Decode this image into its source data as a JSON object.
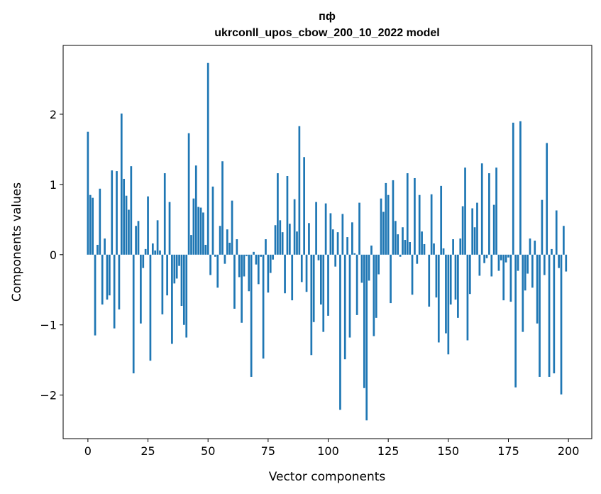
{
  "chart_data": {
    "type": "bar",
    "title_line1": "пф",
    "title_line2": "ukrconll_upos_cbow_200_10_2022 model",
    "xlabel": "Vector components",
    "ylabel": "Components values",
    "xlim": [
      -10.3,
      209.7
    ],
    "ylim": [
      -2.62,
      2.98
    ],
    "xticks": [
      0,
      25,
      50,
      75,
      100,
      125,
      150,
      175,
      200
    ],
    "xtick_labels": [
      "0",
      "25",
      "50",
      "75",
      "100",
      "125",
      "150",
      "175",
      "200"
    ],
    "yticks": [
      -2,
      -1,
      0,
      1,
      2
    ],
    "ytick_labels": [
      "−2",
      "−1",
      "0",
      "1",
      "2"
    ],
    "grid": false,
    "bar_color": "#1f77b4",
    "values": [
      1.75,
      0.85,
      0.81,
      -1.15,
      0.14,
      0.94,
      -0.71,
      0.23,
      -0.64,
      -0.58,
      1.2,
      -1.05,
      1.19,
      -0.78,
      2.01,
      1.08,
      0.84,
      0.64,
      1.26,
      -1.69,
      0.41,
      0.48,
      -0.98,
      -0.19,
      0.08,
      0.83,
      -1.51,
      0.16,
      0.06,
      0.49,
      0.06,
      -0.85,
      1.16,
      -0.58,
      0.75,
      -1.27,
      -0.41,
      -0.34,
      -0.16,
      -0.73,
      -1.0,
      -1.18,
      1.73,
      0.28,
      0.8,
      1.27,
      0.68,
      0.67,
      0.6,
      0.14,
      2.73,
      -0.29,
      0.97,
      -0.03,
      -0.47,
      0.41,
      1.33,
      -0.13,
      0.36,
      0.17,
      0.77,
      -0.77,
      0.22,
      -0.32,
      -0.97,
      -0.31,
      -0.02,
      -0.52,
      -1.74,
      0.04,
      -0.14,
      -0.42,
      -0.03,
      -1.48,
      0.22,
      -0.54,
      -0.26,
      -0.07,
      0.42,
      1.16,
      0.49,
      0.32,
      -0.55,
      1.12,
      0.44,
      -0.65,
      0.79,
      0.33,
      1.83,
      -0.39,
      1.39,
      -0.53,
      0.45,
      -1.43,
      -0.96,
      0.75,
      -0.08,
      -0.71,
      -1.1,
      0.73,
      -0.87,
      0.59,
      0.36,
      -0.17,
      0.32,
      -2.21,
      0.58,
      -1.49,
      0.25,
      -1.18,
      0.46,
      0.02,
      -0.86,
      0.74,
      -0.4,
      -1.9,
      -2.36,
      -0.37,
      0.13,
      -1.16,
      -0.9,
      -0.28,
      0.8,
      0.61,
      1.02,
      0.85,
      -0.69,
      1.06,
      0.48,
      0.29,
      -0.03,
      0.39,
      0.21,
      1.16,
      0.18,
      -0.57,
      1.09,
      -0.13,
      0.85,
      0.33,
      0.15,
      0.0,
      -0.74,
      0.86,
      0.16,
      -0.61,
      -1.25,
      0.98,
      0.09,
      -1.12,
      -1.42,
      -0.71,
      0.22,
      -0.64,
      -0.9,
      0.23,
      0.69,
      1.24,
      -1.22,
      -0.56,
      0.66,
      0.39,
      0.74,
      -0.3,
      1.3,
      -0.12,
      -0.05,
      1.16,
      -0.31,
      0.71,
      1.24,
      -0.23,
      -0.08,
      -0.65,
      -0.11,
      -0.04,
      -0.67,
      1.88,
      -1.89,
      -0.23,
      1.9,
      -1.1,
      -0.51,
      -0.27,
      0.23,
      -0.47,
      0.2,
      -0.98,
      -1.74,
      0.78,
      -0.29,
      1.59,
      -1.74,
      0.08,
      -1.69,
      0.63,
      -0.19,
      -1.99,
      0.41,
      -0.24
    ]
  }
}
